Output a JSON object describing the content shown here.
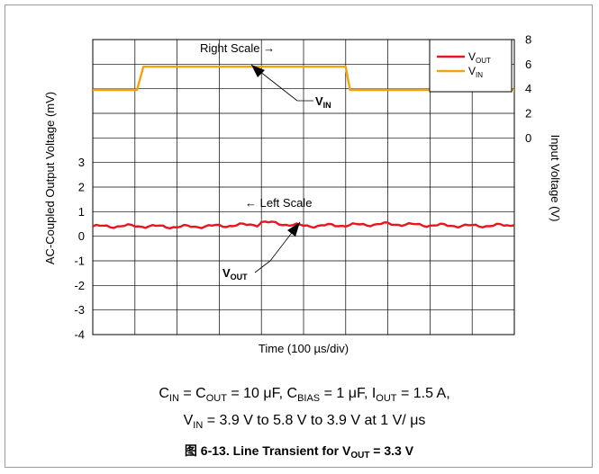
{
  "chart_data": {
    "type": "line",
    "x_axis": {
      "label": "Time (100 µs/div)",
      "divisions": 10
    },
    "left_axis": {
      "label": "AC-Coupled Output Voltage (mV)",
      "min": -4,
      "max": 3,
      "ticks": [
        -4,
        -3,
        -2,
        -1,
        0,
        1,
        2,
        3
      ]
    },
    "right_axis": {
      "label": "Input Voltage (V)",
      "min": 0,
      "max": 8,
      "ticks": [
        0,
        2,
        4,
        6,
        8
      ]
    },
    "grid": true,
    "legend": {
      "placement": "top-right",
      "entries": [
        {
          "main": "V",
          "sub": "OUT",
          "color": "#e8141e"
        },
        {
          "main": "V",
          "sub": "IN",
          "color": "#f5a20c"
        }
      ]
    },
    "series": [
      {
        "name": "VOUT",
        "axis": "left",
        "color": "#e8141e",
        "x_div": [
          0,
          1,
          2,
          3,
          3.9,
          4,
          5,
          6,
          7,
          8,
          9,
          10
        ],
        "values": [
          0.4,
          0.42,
          0.38,
          0.42,
          0.48,
          0.58,
          0.42,
          0.45,
          0.5,
          0.45,
          0.42,
          0.45
        ]
      },
      {
        "name": "VIN",
        "axis": "right",
        "color": "#f5a20c",
        "x_div": [
          0,
          1.05,
          1.2,
          6.0,
          6.1,
          10
        ],
        "values": [
          3.9,
          3.9,
          5.8,
          5.8,
          3.9,
          3.9
        ]
      }
    ],
    "annotations": [
      {
        "text": "Right Scale →"
      },
      {
        "text": "← Left Scale"
      },
      {
        "main": "V",
        "sub": "IN"
      },
      {
        "main": "V",
        "sub": "OUT"
      }
    ]
  },
  "caption": {
    "line1": {
      "c": "C",
      "c_in_sub": "IN",
      "eq": " = C",
      "c_out_sub": "OUT",
      "cap_value": " = 10  μF, C",
      "bias_sub": "BIAS",
      "bias_value": " = 1  μF, I",
      "i_sub": "OUT",
      "i_value": " = 1.5 A,"
    },
    "line2": {
      "v": "V",
      "v_sub": "IN",
      "rest": " = 3.9 V to 5.8 V to 3.9 V at 1 V/ μs"
    },
    "figure": {
      "label": "图 6-13. Line Transient for V",
      "sub": "OUT",
      "rest": " = 3.3 V"
    }
  }
}
